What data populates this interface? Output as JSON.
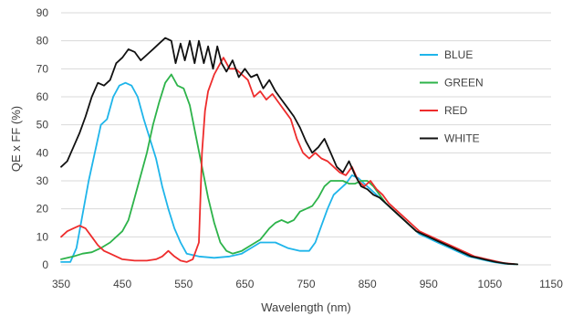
{
  "chart_data": {
    "type": "line",
    "title": "",
    "xlabel": "Wavelength (nm)",
    "ylabel": "QE x FF (%)",
    "xlim": [
      350,
      1150
    ],
    "ylim": [
      0,
      90
    ],
    "xticks": [
      350,
      450,
      550,
      650,
      750,
      850,
      950,
      1050,
      1150
    ],
    "yticks": [
      0,
      10,
      20,
      30,
      40,
      50,
      60,
      70,
      80,
      90
    ],
    "grid": "horizontal",
    "legend_position": "right",
    "series": [
      {
        "name": "BLUE",
        "color": "#1fb5ea",
        "points": [
          [
            350,
            1
          ],
          [
            365,
            1
          ],
          [
            375,
            6
          ],
          [
            385,
            18
          ],
          [
            395,
            30
          ],
          [
            405,
            40
          ],
          [
            415,
            50
          ],
          [
            425,
            52
          ],
          [
            435,
            60
          ],
          [
            445,
            64
          ],
          [
            455,
            65
          ],
          [
            465,
            64
          ],
          [
            475,
            60
          ],
          [
            485,
            52
          ],
          [
            495,
            45
          ],
          [
            505,
            38
          ],
          [
            515,
            28
          ],
          [
            525,
            20
          ],
          [
            535,
            13
          ],
          [
            545,
            8
          ],
          [
            555,
            4
          ],
          [
            575,
            3
          ],
          [
            600,
            2.5
          ],
          [
            625,
            3
          ],
          [
            645,
            4
          ],
          [
            660,
            6
          ],
          [
            675,
            8
          ],
          [
            690,
            8
          ],
          [
            700,
            8
          ],
          [
            720,
            6
          ],
          [
            740,
            5
          ],
          [
            755,
            5
          ],
          [
            765,
            8
          ],
          [
            775,
            14
          ],
          [
            785,
            20
          ],
          [
            795,
            25
          ],
          [
            805,
            27
          ],
          [
            815,
            29
          ],
          [
            825,
            32
          ],
          [
            835,
            31
          ],
          [
            845,
            29
          ],
          [
            855,
            27
          ],
          [
            865,
            25
          ],
          [
            875,
            23
          ],
          [
            885,
            21
          ],
          [
            895,
            19
          ],
          [
            905,
            17
          ],
          [
            915,
            15
          ],
          [
            925,
            13
          ],
          [
            935,
            11
          ],
          [
            945,
            10
          ],
          [
            955,
            9
          ],
          [
            965,
            8
          ],
          [
            975,
            7
          ],
          [
            985,
            6
          ],
          [
            995,
            5
          ],
          [
            1005,
            4
          ],
          [
            1015,
            3
          ],
          [
            1025,
            2.5
          ],
          [
            1035,
            2
          ],
          [
            1045,
            1.5
          ],
          [
            1055,
            1
          ],
          [
            1065,
            0.7
          ],
          [
            1075,
            0.4
          ],
          [
            1090,
            0.2
          ]
        ]
      },
      {
        "name": "GREEN",
        "color": "#2db34a",
        "points": [
          [
            350,
            2
          ],
          [
            370,
            3
          ],
          [
            385,
            4
          ],
          [
            400,
            4.5
          ],
          [
            415,
            6
          ],
          [
            430,
            8
          ],
          [
            440,
            10
          ],
          [
            450,
            12
          ],
          [
            460,
            16
          ],
          [
            470,
            24
          ],
          [
            480,
            32
          ],
          [
            490,
            40
          ],
          [
            500,
            50
          ],
          [
            510,
            58
          ],
          [
            520,
            65
          ],
          [
            530,
            68
          ],
          [
            540,
            64
          ],
          [
            550,
            63
          ],
          [
            560,
            57
          ],
          [
            570,
            46
          ],
          [
            580,
            35
          ],
          [
            590,
            24
          ],
          [
            600,
            15
          ],
          [
            610,
            8
          ],
          [
            620,
            5
          ],
          [
            630,
            4
          ],
          [
            645,
            5
          ],
          [
            660,
            7
          ],
          [
            675,
            9
          ],
          [
            690,
            13
          ],
          [
            700,
            15
          ],
          [
            710,
            16
          ],
          [
            720,
            15
          ],
          [
            730,
            16
          ],
          [
            740,
            19
          ],
          [
            750,
            20
          ],
          [
            760,
            21
          ],
          [
            770,
            24
          ],
          [
            780,
            28
          ],
          [
            790,
            30
          ],
          [
            800,
            30
          ],
          [
            810,
            30
          ],
          [
            820,
            29
          ],
          [
            830,
            29
          ],
          [
            840,
            30
          ],
          [
            850,
            30
          ],
          [
            860,
            28
          ],
          [
            870,
            25
          ],
          [
            880,
            22
          ],
          [
            890,
            20
          ],
          [
            900,
            18
          ],
          [
            910,
            16
          ],
          [
            920,
            14
          ],
          [
            930,
            12
          ],
          [
            940,
            11
          ],
          [
            950,
            10
          ],
          [
            960,
            9
          ],
          [
            970,
            8
          ],
          [
            980,
            7
          ],
          [
            990,
            6
          ],
          [
            1000,
            5
          ],
          [
            1010,
            4
          ],
          [
            1020,
            3
          ],
          [
            1030,
            2.5
          ],
          [
            1040,
            2
          ],
          [
            1050,
            1.5
          ],
          [
            1060,
            1
          ],
          [
            1070,
            0.7
          ],
          [
            1080,
            0.4
          ],
          [
            1095,
            0.2
          ]
        ]
      },
      {
        "name": "RED",
        "color": "#ee2c2c",
        "points": [
          [
            350,
            10
          ],
          [
            360,
            12
          ],
          [
            370,
            13
          ],
          [
            380,
            14
          ],
          [
            390,
            13
          ],
          [
            400,
            10
          ],
          [
            410,
            7
          ],
          [
            420,
            5
          ],
          [
            430,
            4
          ],
          [
            440,
            3
          ],
          [
            450,
            2
          ],
          [
            470,
            1.5
          ],
          [
            490,
            1.5
          ],
          [
            505,
            2
          ],
          [
            515,
            3
          ],
          [
            525,
            5
          ],
          [
            535,
            3
          ],
          [
            545,
            1.5
          ],
          [
            555,
            1
          ],
          [
            565,
            2
          ],
          [
            575,
            8
          ],
          [
            580,
            40
          ],
          [
            585,
            55
          ],
          [
            590,
            62
          ],
          [
            600,
            68
          ],
          [
            610,
            72
          ],
          [
            615,
            74
          ],
          [
            625,
            70
          ],
          [
            635,
            70
          ],
          [
            645,
            68
          ],
          [
            655,
            66
          ],
          [
            665,
            60
          ],
          [
            675,
            62
          ],
          [
            685,
            59
          ],
          [
            695,
            61
          ],
          [
            705,
            58
          ],
          [
            715,
            55
          ],
          [
            725,
            52
          ],
          [
            735,
            45
          ],
          [
            745,
            40
          ],
          [
            755,
            38
          ],
          [
            765,
            40
          ],
          [
            775,
            38
          ],
          [
            785,
            37
          ],
          [
            795,
            35
          ],
          [
            805,
            33
          ],
          [
            815,
            32
          ],
          [
            825,
            35
          ],
          [
            835,
            30
          ],
          [
            845,
            28
          ],
          [
            855,
            30
          ],
          [
            865,
            27
          ],
          [
            875,
            25
          ],
          [
            885,
            22
          ],
          [
            895,
            20
          ],
          [
            905,
            18
          ],
          [
            915,
            16
          ],
          [
            925,
            14
          ],
          [
            935,
            12
          ],
          [
            945,
            11
          ],
          [
            955,
            10
          ],
          [
            965,
            9
          ],
          [
            975,
            8
          ],
          [
            985,
            7
          ],
          [
            995,
            6
          ],
          [
            1005,
            5
          ],
          [
            1015,
            4
          ],
          [
            1025,
            3
          ],
          [
            1035,
            2.5
          ],
          [
            1045,
            2
          ],
          [
            1055,
            1.5
          ],
          [
            1065,
            1
          ],
          [
            1075,
            0.6
          ],
          [
            1090,
            0.3
          ]
        ]
      },
      {
        "name": "WHITE",
        "color": "#111111",
        "points": [
          [
            350,
            35
          ],
          [
            360,
            37
          ],
          [
            370,
            42
          ],
          [
            380,
            47
          ],
          [
            390,
            53
          ],
          [
            400,
            60
          ],
          [
            410,
            65
          ],
          [
            420,
            64
          ],
          [
            430,
            66
          ],
          [
            440,
            72
          ],
          [
            450,
            74
          ],
          [
            460,
            77
          ],
          [
            470,
            76
          ],
          [
            480,
            73
          ],
          [
            490,
            75
          ],
          [
            500,
            77
          ],
          [
            510,
            79
          ],
          [
            520,
            81
          ],
          [
            530,
            80
          ],
          [
            537,
            72
          ],
          [
            545,
            79
          ],
          [
            552,
            73
          ],
          [
            560,
            80
          ],
          [
            568,
            72
          ],
          [
            575,
            80
          ],
          [
            583,
            72
          ],
          [
            590,
            78
          ],
          [
            598,
            70
          ],
          [
            605,
            78
          ],
          [
            612,
            72
          ],
          [
            620,
            69
          ],
          [
            630,
            73
          ],
          [
            640,
            67
          ],
          [
            650,
            70
          ],
          [
            660,
            67
          ],
          [
            670,
            68
          ],
          [
            680,
            63
          ],
          [
            690,
            66
          ],
          [
            700,
            62
          ],
          [
            710,
            59
          ],
          [
            720,
            56
          ],
          [
            730,
            53
          ],
          [
            740,
            49
          ],
          [
            750,
            44
          ],
          [
            760,
            40
          ],
          [
            770,
            42
          ],
          [
            780,
            45
          ],
          [
            790,
            40
          ],
          [
            800,
            35
          ],
          [
            810,
            33
          ],
          [
            820,
            37
          ],
          [
            830,
            32
          ],
          [
            840,
            28
          ],
          [
            850,
            27
          ],
          [
            860,
            25
          ],
          [
            870,
            24
          ],
          [
            880,
            22
          ],
          [
            890,
            20
          ],
          [
            900,
            18
          ],
          [
            910,
            16
          ],
          [
            920,
            14
          ],
          [
            930,
            12
          ],
          [
            940,
            11
          ],
          [
            950,
            10
          ],
          [
            960,
            9
          ],
          [
            970,
            8
          ],
          [
            980,
            7
          ],
          [
            990,
            6
          ],
          [
            1000,
            5
          ],
          [
            1010,
            4
          ],
          [
            1020,
            3
          ],
          [
            1030,
            2.5
          ],
          [
            1040,
            2
          ],
          [
            1050,
            1.5
          ],
          [
            1060,
            1
          ],
          [
            1070,
            0.7
          ],
          [
            1080,
            0.4
          ],
          [
            1095,
            0.2
          ]
        ]
      }
    ]
  }
}
